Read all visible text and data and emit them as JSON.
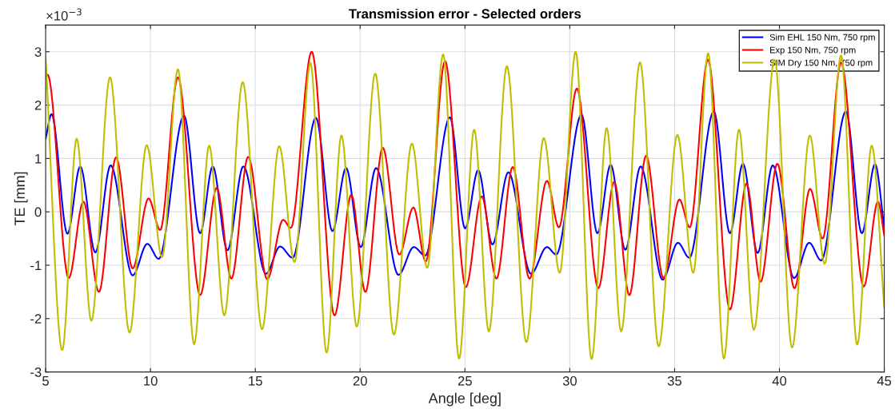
{
  "chart_data": {
    "type": "line",
    "title": "Transmission error - Selected orders",
    "xlabel": "Angle [deg]",
    "ylabel": "TE [mm]",
    "annotations": [
      "×10$^{−3}$"
    ],
    "xlim": [
      5,
      45
    ],
    "xticks": [
      5,
      10,
      15,
      20,
      25,
      30,
      35,
      40,
      45
    ],
    "ylim": [
      -3,
      3.5
    ],
    "yticks": [
      -3,
      -2,
      -1,
      0,
      1,
      2,
      3
    ],
    "grid": true,
    "legend": "top right",
    "line_style": "solid",
    "marker": "none",
    "series": [
      {
        "name": "Sim EHL 150 Nm, 750 rpm",
        "color": "#0000ff",
        "x": [
          5.0,
          5.28,
          6.04,
          6.65,
          7.37,
          8.1,
          9.15,
          9.85,
          10.39,
          11.6,
          12.37,
          12.97,
          13.67,
          14.43,
          15.51,
          16.18,
          16.78,
          17.89,
          18.68,
          19.33,
          20.03,
          20.76,
          21.83,
          22.56,
          23.1,
          24.28,
          25.01,
          25.63,
          26.31,
          27.07,
          28.15,
          28.91,
          29.35,
          30.56,
          31.32,
          31.95,
          32.65,
          33.38,
          34.43,
          35.16,
          35.7,
          36.87,
          37.64,
          38.26,
          38.96,
          39.68,
          40.7,
          41.42,
          41.99,
          43.17,
          43.93,
          44.56,
          45.0
        ],
        "values": [
          1.37,
          1.83,
          -0.41,
          0.85,
          -0.76,
          0.87,
          -1.19,
          -0.6,
          -0.88,
          1.8,
          -0.4,
          0.85,
          -0.72,
          0.85,
          -1.16,
          -0.65,
          -0.86,
          1.76,
          -0.36,
          0.82,
          -0.66,
          0.82,
          -1.18,
          -0.66,
          -0.82,
          1.77,
          -0.31,
          0.78,
          -0.61,
          0.74,
          -1.16,
          -0.66,
          -0.8,
          1.82,
          -0.4,
          0.88,
          -0.71,
          0.85,
          -1.27,
          -0.58,
          -0.86,
          1.88,
          -0.4,
          0.9,
          -0.77,
          0.87,
          -1.24,
          -0.58,
          -0.91,
          1.88,
          -0.4,
          0.89,
          -0.29
        ]
      },
      {
        "name": "Exp 150 Nm, 750 rpm",
        "color": "#ff0000",
        "x": [
          5.0,
          5.09,
          6.1,
          6.8,
          7.54,
          8.36,
          9.15,
          9.91,
          10.46,
          11.31,
          12.37,
          13.16,
          13.86,
          14.66,
          15.57,
          16.33,
          16.69,
          17.69,
          18.78,
          19.58,
          20.25,
          21.08,
          21.87,
          22.54,
          23.13,
          24.05,
          25.04,
          25.8,
          26.5,
          27.28,
          28.08,
          28.91,
          29.48,
          30.34,
          31.36,
          32.12,
          32.84,
          33.64,
          34.47,
          35.23,
          35.72,
          36.59,
          37.64,
          38.43,
          39.1,
          39.9,
          40.72,
          41.46,
          42.06,
          42.94,
          44.02,
          44.7,
          45.0
        ],
        "values": [
          2.54,
          2.57,
          -1.24,
          0.19,
          -1.5,
          1.02,
          -1.06,
          0.25,
          -0.34,
          2.52,
          -1.56,
          0.45,
          -1.25,
          1.03,
          -1.26,
          -0.15,
          -0.3,
          3.0,
          -1.94,
          0.32,
          -1.5,
          1.2,
          -0.8,
          0.08,
          -0.93,
          2.82,
          -1.41,
          0.29,
          -1.25,
          0.84,
          -1.25,
          0.58,
          -0.29,
          2.31,
          -1.43,
          0.56,
          -1.56,
          1.05,
          -1.24,
          0.23,
          -0.29,
          2.85,
          -1.83,
          0.53,
          -1.31,
          0.9,
          -1.43,
          0.43,
          -0.5,
          2.8,
          -1.4,
          0.19,
          -0.44
        ]
      },
      {
        "name": "SIM Dry 150 Nm, 750 rpm",
        "color": "#bfbf00",
        "x": [
          5.0,
          5.79,
          6.48,
          7.18,
          8.07,
          9.0,
          9.82,
          10.55,
          11.31,
          12.08,
          12.8,
          13.52,
          14.4,
          15.32,
          16.14,
          16.87,
          17.63,
          18.4,
          19.11,
          19.84,
          20.72,
          21.61,
          22.47,
          23.2,
          23.96,
          24.72,
          25.44,
          26.14,
          27.0,
          27.93,
          28.76,
          29.52,
          30.28,
          31.04,
          31.76,
          32.45,
          33.35,
          34.24,
          35.13,
          35.89,
          36.6,
          37.35,
          38.07,
          38.78,
          39.77,
          40.6,
          41.45,
          42.16,
          42.94,
          43.71,
          44.4,
          45.0
        ],
        "values": [
          2.87,
          -2.59,
          1.37,
          -2.04,
          2.52,
          -2.26,
          1.25,
          -0.85,
          2.67,
          -2.48,
          1.24,
          -1.94,
          2.43,
          -2.2,
          1.23,
          -0.94,
          2.79,
          -2.64,
          1.43,
          -2.15,
          2.59,
          -2.3,
          1.28,
          -1.05,
          2.95,
          -2.75,
          1.54,
          -2.24,
          2.73,
          -2.44,
          1.38,
          -1.14,
          3.0,
          -2.76,
          1.57,
          -2.24,
          2.8,
          -2.52,
          1.44,
          -1.14,
          2.97,
          -2.75,
          1.54,
          -2.21,
          2.85,
          -2.54,
          1.43,
          -0.97,
          2.93,
          -2.49,
          1.24,
          -1.79
        ]
      }
    ]
  }
}
